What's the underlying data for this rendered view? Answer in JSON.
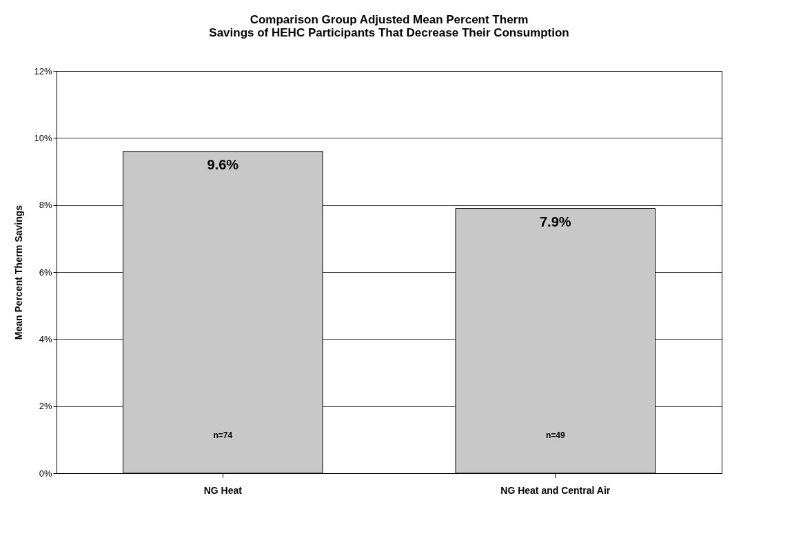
{
  "chart_data": {
    "type": "bar",
    "title": [
      "Comparison Group Adjusted Mean Percent Therm",
      "Savings of HEHC Participants That Decrease Their Consumption"
    ],
    "ylabel": "Mean Percent Therm Savings",
    "categories": [
      "NG Heat",
      "NG Heat and Central Air"
    ],
    "values": [
      9.6,
      7.9
    ],
    "value_labels": [
      "9.6%",
      "7.9%"
    ],
    "color": "#c8c8c8",
    "ylim": [
      0,
      12
    ],
    "yticks": [
      {
        "value": 0,
        "label": "0%"
      },
      {
        "value": 2,
        "label": "2%"
      },
      {
        "value": 4,
        "label": "4%"
      },
      {
        "value": 6,
        "label": "6%"
      },
      {
        "value": 8,
        "label": "8%"
      },
      {
        "value": 10,
        "label": "10%"
      },
      {
        "value": 12,
        "label": "12%"
      }
    ],
    "grid": "y",
    "annotations": [
      "n=74",
      "n=49"
    ]
  }
}
